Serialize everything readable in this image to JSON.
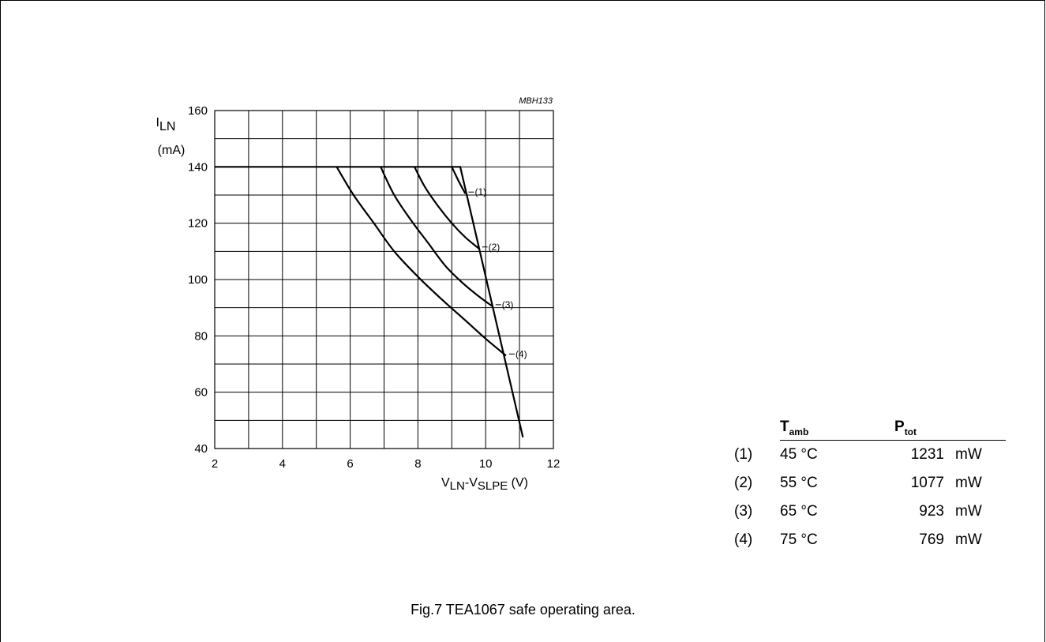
{
  "figure_code": "MBH133",
  "caption": "Fig.7  TEA1067 safe operating area.",
  "chart_data": {
    "type": "line",
    "title": "",
    "ylabel": "I",
    "ylabel_sub": "LN",
    "ylabel_unit": "(mA)",
    "xlabel_v1": "V",
    "xlabel_sub1": "LN",
    "xlabel_dash": "-V",
    "xlabel_sub2": "SLPE",
    "xlabel_unit": " (V)",
    "xlim": [
      2,
      12
    ],
    "ylim": [
      40,
      160
    ],
    "x_ticks": [
      "2",
      "4",
      "6",
      "8",
      "10",
      "12"
    ],
    "y_ticks": [
      "40",
      "60",
      "80",
      "100",
      "120",
      "140",
      "160"
    ],
    "grid": true,
    "boundary": {
      "name": "",
      "points": [
        [
          2,
          140
        ],
        [
          9.25,
          140
        ],
        [
          11.1,
          44
        ]
      ]
    },
    "series": [
      {
        "label": "(1)",
        "points": [
          [
            9.0,
            140
          ],
          [
            9.1,
            137.5
          ],
          [
            9.2,
            135
          ],
          [
            9.3,
            132.7
          ],
          [
            9.4,
            130.5
          ]
        ],
        "label_at": [
          9.4,
          130.5
        ]
      },
      {
        "label": "(2)",
        "points": [
          [
            7.9,
            140
          ],
          [
            8.2,
            133
          ],
          [
            8.6,
            126
          ],
          [
            9.0,
            120
          ],
          [
            9.4,
            115
          ],
          [
            9.8,
            111
          ]
        ],
        "label_at": [
          9.8,
          111
        ]
      },
      {
        "label": "(3)",
        "points": [
          [
            6.9,
            140
          ],
          [
            7.3,
            130
          ],
          [
            7.8,
            121
          ],
          [
            8.3,
            113
          ],
          [
            8.8,
            105
          ],
          [
            9.3,
            99
          ],
          [
            9.8,
            94
          ],
          [
            10.2,
            90.5
          ]
        ],
        "label_at": [
          10.2,
          90.5
        ]
      },
      {
        "label": "(4)",
        "points": [
          [
            5.6,
            140
          ],
          [
            6.1,
            130
          ],
          [
            6.7,
            120
          ],
          [
            7.3,
            110
          ],
          [
            8.0,
            101
          ],
          [
            8.7,
            93
          ],
          [
            9.4,
            85.5
          ],
          [
            10.0,
            79
          ],
          [
            10.6,
            73
          ]
        ],
        "label_at": [
          10.6,
          73
        ]
      }
    ]
  },
  "legend_table": {
    "header_temp": "T",
    "header_temp_sub": "amb",
    "header_power": "P",
    "header_power_sub": "tot",
    "rows": [
      {
        "key": "(1)",
        "temp": "45 °C",
        "power": "1231",
        "unit": "mW"
      },
      {
        "key": "(2)",
        "temp": "55 °C",
        "power": "1077",
        "unit": "mW"
      },
      {
        "key": "(3)",
        "temp": "65 °C",
        "power": "923",
        "unit": "mW"
      },
      {
        "key": "(4)",
        "temp": "75 °C",
        "power": "769",
        "unit": "mW"
      }
    ]
  }
}
